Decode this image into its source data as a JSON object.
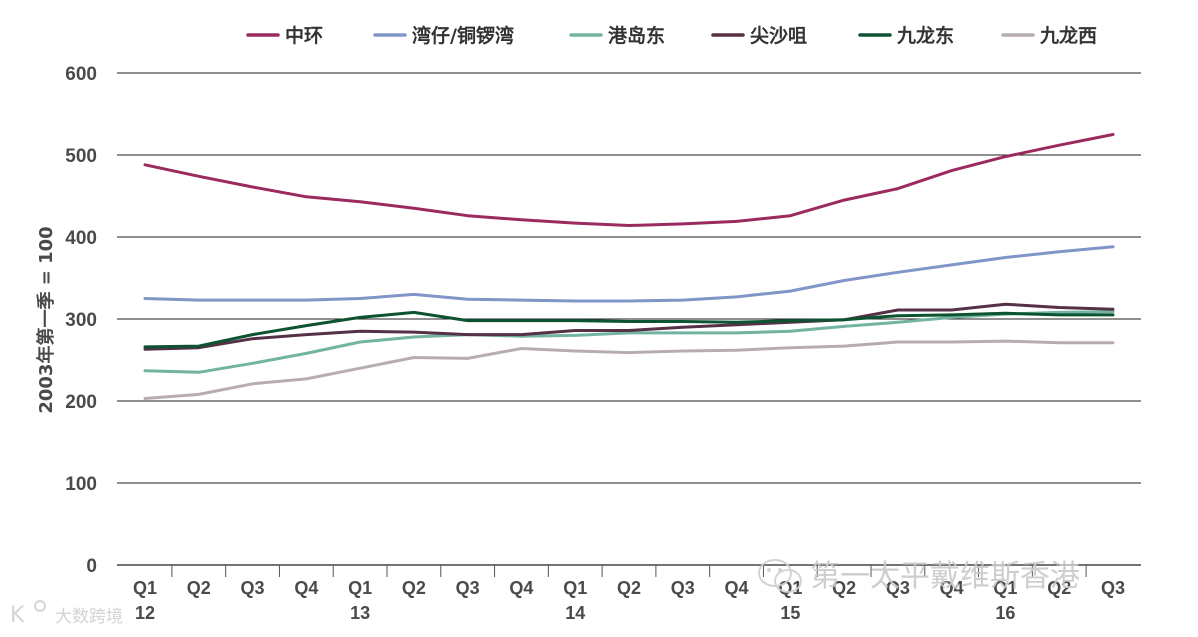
{
  "chart_data": {
    "type": "line",
    "title": "",
    "xlabel": "",
    "ylabel": "2003年第一季 = 100",
    "ylim": [
      0,
      600
    ],
    "yticks": [
      0,
      100,
      200,
      300,
      400,
      500,
      600
    ],
    "grid": true,
    "legend_position": "top",
    "x": [
      "Q1",
      "Q2",
      "Q3",
      "Q4",
      "Q1",
      "Q2",
      "Q3",
      "Q4",
      "Q1",
      "Q2",
      "Q3",
      "Q4",
      "Q1",
      "Q2",
      "Q3",
      "Q4",
      "Q1",
      "Q2",
      "Q3"
    ],
    "year_labels": [
      {
        "label": "12",
        "index": 0
      },
      {
        "label": "13",
        "index": 4
      },
      {
        "label": "14",
        "index": 8
      },
      {
        "label": "15",
        "index": 12
      },
      {
        "label": "16",
        "index": 16
      }
    ],
    "series": [
      {
        "name": "中环",
        "color": "#9b2a5e",
        "values": [
          488,
          474,
          461,
          449,
          443,
          435,
          426,
          421,
          417,
          414,
          416,
          419,
          426,
          445,
          459,
          481,
          498,
          512,
          525
        ]
      },
      {
        "name": "湾仔/铜锣湾",
        "color": "#8096c8",
        "values": [
          325,
          323,
          323,
          323,
          325,
          330,
          324,
          323,
          322,
          322,
          323,
          327,
          334,
          347,
          357,
          366,
          375,
          382,
          388
        ]
      },
      {
        "name": "港岛东",
        "color": "#73b3a1",
        "values": [
          237,
          235,
          246,
          258,
          272,
          278,
          281,
          279,
          280,
          283,
          283,
          283,
          285,
          291,
          296,
          302,
          306,
          308,
          309
        ]
      },
      {
        "name": "尖沙咀",
        "color": "#563045",
        "values": [
          263,
          265,
          276,
          281,
          285,
          284,
          281,
          281,
          286,
          286,
          290,
          293,
          296,
          299,
          311,
          311,
          318,
          314,
          312
        ]
      },
      {
        "name": "九龙东",
        "color": "#0c5332",
        "values": [
          266,
          267,
          281,
          292,
          302,
          308,
          298,
          298,
          298,
          297,
          297,
          296,
          298,
          299,
          304,
          305,
          307,
          305,
          305
        ]
      },
      {
        "name": "九龙西",
        "color": "#b7adb0",
        "values": [
          203,
          208,
          221,
          227,
          240,
          253,
          252,
          264,
          261,
          259,
          261,
          262,
          265,
          267,
          272,
          272,
          273,
          271,
          271
        ]
      }
    ]
  },
  "watermark": {
    "main": "第一太平戴维斯香港",
    "bottom_left": "大数跨境",
    "logo_text": "K"
  }
}
